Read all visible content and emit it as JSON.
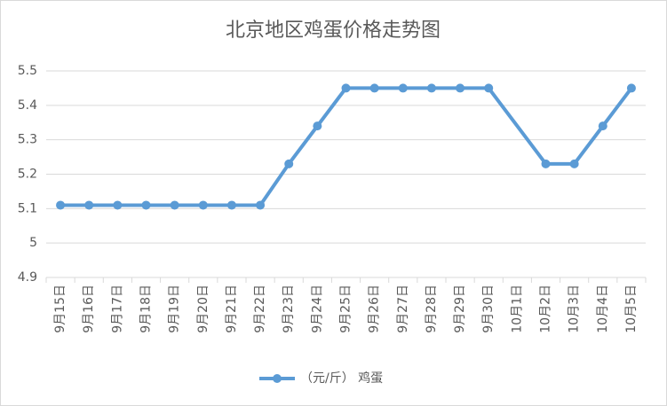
{
  "chart_data": {
    "type": "line",
    "title": "北京地区鸡蛋价格走势图",
    "categories": [
      "9月15日",
      "9月16日",
      "9月17日",
      "9月18日",
      "9月19日",
      "9月20日",
      "9月21日",
      "9月22日",
      "9月23日",
      "9月24日",
      "9月25日",
      "9月26日",
      "9月27日",
      "9月28日",
      "9月29日",
      "9月30日",
      "10月1日",
      "10月2日",
      "10月3日",
      "10月4日",
      "10月5日"
    ],
    "series": [
      {
        "name": "（元/斤） 鸡蛋",
        "color": "#5b9bd5",
        "values": [
          5.11,
          5.11,
          5.11,
          5.11,
          5.11,
          5.11,
          5.11,
          5.11,
          5.23,
          5.34,
          5.45,
          5.45,
          5.45,
          5.45,
          5.45,
          5.45,
          null,
          5.23,
          5.23,
          5.34,
          5.45
        ]
      }
    ],
    "ylim": [
      4.9,
      5.5
    ],
    "yticks": [
      4.9,
      5,
      5.1,
      5.2,
      5.3,
      5.4,
      5.5
    ],
    "grid": true,
    "legend": "bottom"
  }
}
